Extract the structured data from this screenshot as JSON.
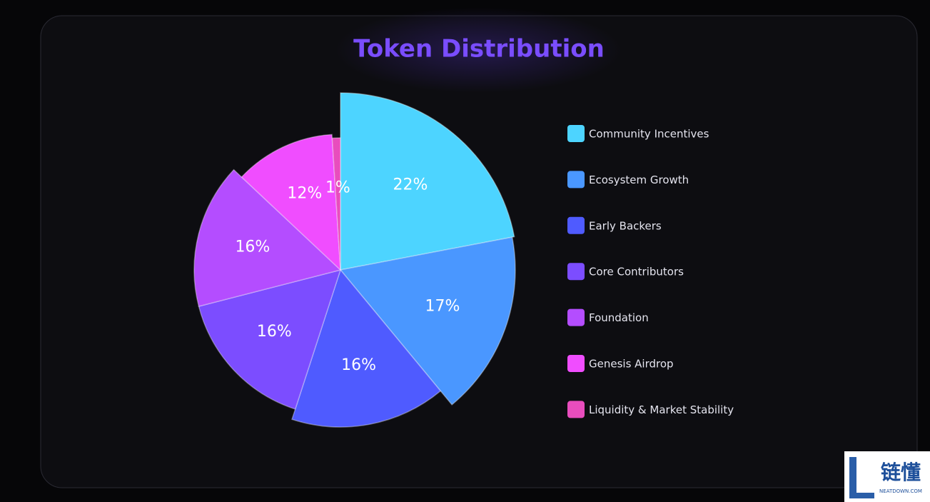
{
  "chart_data": {
    "type": "pie",
    "title": "Token Distribution",
    "categories": [
      "Community Incentives",
      "Ecosystem Growth",
      "Early Backers",
      "Core Contributors",
      "Foundation",
      "Genesis Airdrop",
      "Liquidity & Market Stability"
    ],
    "values": [
      22,
      17,
      16,
      16,
      16,
      12,
      1
    ],
    "value_labels": [
      "22%",
      "17%",
      "16%",
      "16%",
      "16%",
      "12%",
      "1%"
    ],
    "colors": [
      "#4dd4ff",
      "#4a97ff",
      "#4f5bff",
      "#7c4dff",
      "#b44dff",
      "#f04dff",
      "#e84dbd"
    ],
    "legend": "right"
  },
  "watermark": {
    "title": "链懂",
    "subtitle": "NEATDOWN.COM"
  }
}
